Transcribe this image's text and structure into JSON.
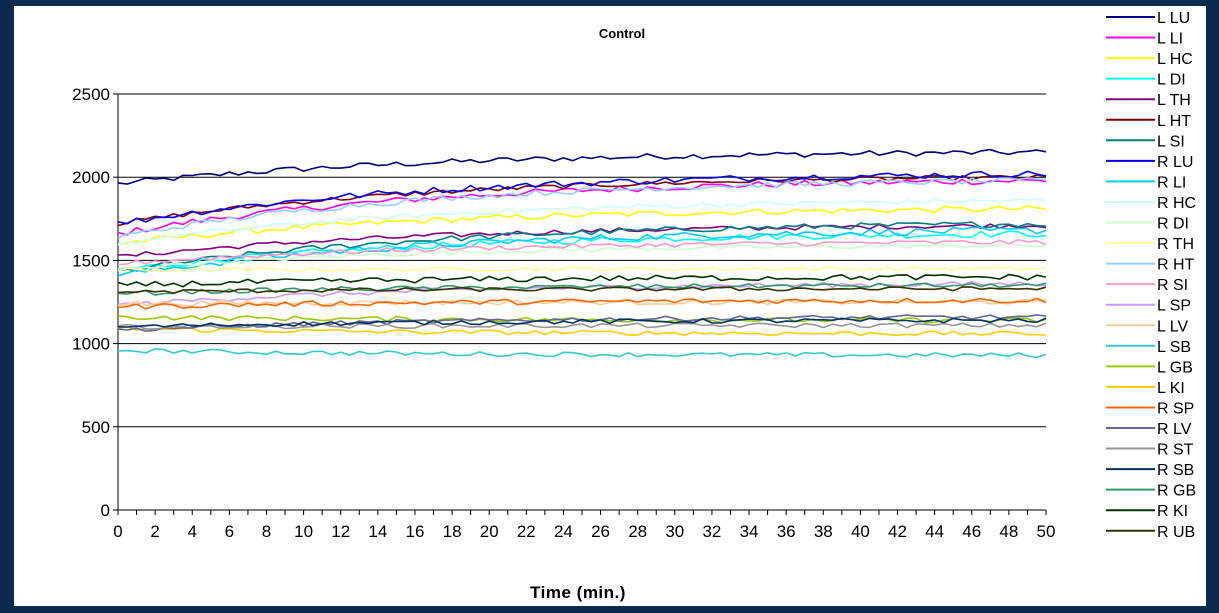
{
  "chart_data": {
    "type": "line",
    "title": "Control",
    "xlabel": "Time (min.)",
    "ylabel": "",
    "xlim": [
      0,
      50
    ],
    "ylim": [
      0,
      2500
    ],
    "x_ticks": [
      0,
      2,
      4,
      6,
      8,
      10,
      12,
      14,
      16,
      18,
      20,
      22,
      24,
      26,
      28,
      30,
      32,
      34,
      36,
      38,
      40,
      42,
      44,
      46,
      48,
      50
    ],
    "y_ticks": [
      0,
      500,
      1000,
      1500,
      2000,
      2500
    ],
    "grid": "horizontal",
    "legend_position": "right",
    "series": [
      {
        "name": "L LU",
        "color": "#000080",
        "start": 1960,
        "end": 2150,
        "noise": 18
      },
      {
        "name": "L LI",
        "color": "#ff00ff",
        "start": 1660,
        "end": 1980,
        "noise": 20
      },
      {
        "name": "L HC",
        "color": "#ffff00",
        "start": 1600,
        "end": 1810,
        "noise": 18
      },
      {
        "name": "L DI",
        "color": "#00ffff",
        "start": 1440,
        "end": 1660,
        "noise": 20
      },
      {
        "name": "L TH",
        "color": "#800080",
        "start": 1520,
        "end": 1710,
        "noise": 15
      },
      {
        "name": "L HT",
        "color": "#800000",
        "start": 1720,
        "end": 2000,
        "noise": 15
      },
      {
        "name": "L SI",
        "color": "#008080",
        "start": 1430,
        "end": 1720,
        "noise": 18
      },
      {
        "name": "R LU",
        "color": "#0000ff",
        "start": 1720,
        "end": 2020,
        "noise": 20
      },
      {
        "name": "R LI",
        "color": "#00ccff",
        "start": 1410,
        "end": 1680,
        "noise": 22
      },
      {
        "name": "R HC",
        "color": "#ccffff",
        "start": 1600,
        "end": 1860,
        "noise": 15
      },
      {
        "name": "R DI",
        "color": "#ccffcc",
        "start": 1450,
        "end": 1590,
        "noise": 14
      },
      {
        "name": "R TH",
        "color": "#ffff99",
        "start": 1440,
        "end": 1450,
        "noise": 12
      },
      {
        "name": "R HT",
        "color": "#99ccff",
        "start": 1640,
        "end": 1980,
        "noise": 18
      },
      {
        "name": "R SI",
        "color": "#ff99cc",
        "start": 1480,
        "end": 1610,
        "noise": 15
      },
      {
        "name": "L SP",
        "color": "#cc99ff",
        "start": 1230,
        "end": 1360,
        "noise": 15
      },
      {
        "name": "L LV",
        "color": "#ffcc99",
        "start": 1240,
        "end": 1250,
        "noise": 15
      },
      {
        "name": "L SB",
        "color": "#33cccc",
        "start": 960,
        "end": 930,
        "noise": 14
      },
      {
        "name": "L GB",
        "color": "#99cc00",
        "start": 1160,
        "end": 1140,
        "noise": 15
      },
      {
        "name": "L KI",
        "color": "#ffcc00",
        "start": 1090,
        "end": 1060,
        "noise": 14
      },
      {
        "name": "R SP",
        "color": "#ff6600",
        "start": 1220,
        "end": 1260,
        "noise": 16
      },
      {
        "name": "R LV",
        "color": "#666699",
        "start": 1080,
        "end": 1160,
        "noise": 14
      },
      {
        "name": "R ST",
        "color": "#969696",
        "start": 1100,
        "end": 1110,
        "noise": 14
      },
      {
        "name": "R SB",
        "color": "#003366",
        "start": 1100,
        "end": 1140,
        "noise": 14
      },
      {
        "name": "R GB",
        "color": "#339966",
        "start": 1300,
        "end": 1350,
        "noise": 14
      },
      {
        "name": "R KI",
        "color": "#003300",
        "start": 1350,
        "end": 1400,
        "noise": 18
      },
      {
        "name": "R UB",
        "color": "#333300",
        "start": 1310,
        "end": 1330,
        "noise": 12
      }
    ]
  }
}
